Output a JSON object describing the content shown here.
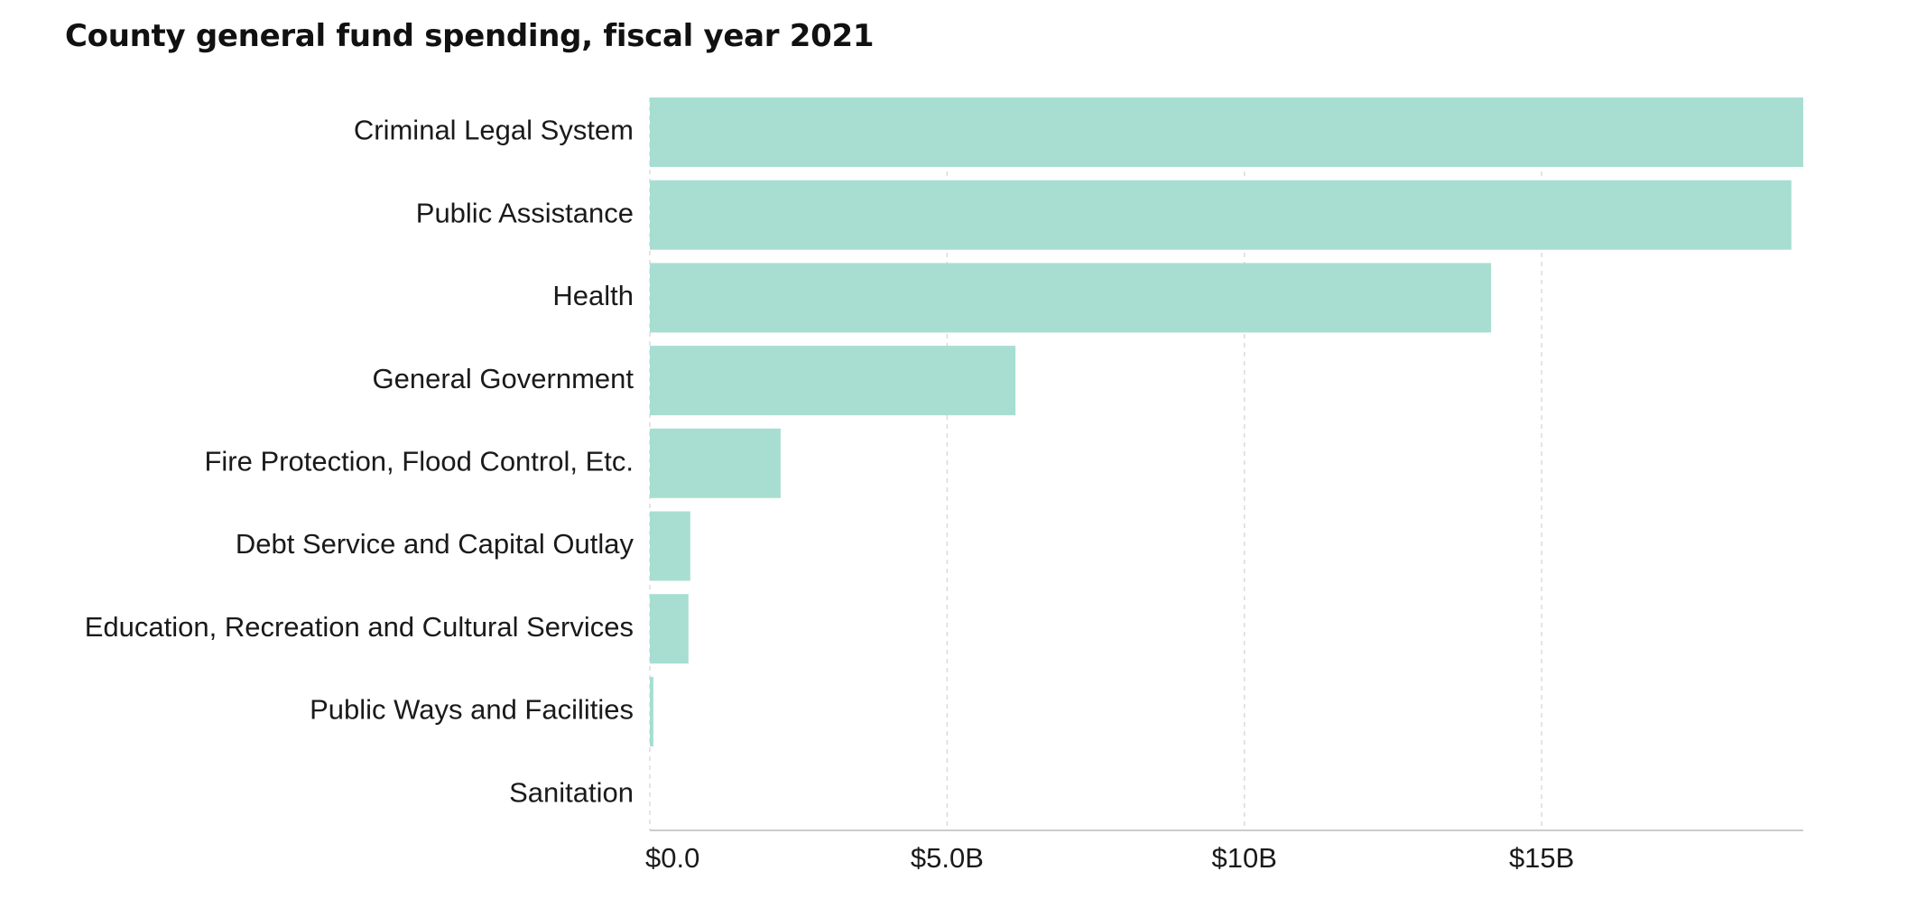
{
  "chart_data": {
    "type": "bar",
    "orientation": "horizontal",
    "title": "County general fund spending, fiscal year 2021",
    "xlabel": "",
    "ylabel": "",
    "categories": [
      "Criminal Legal System",
      "Public Assistance",
      "Health",
      "General Government",
      "Fire Protection, Flood Control, Etc.",
      "Debt Service and Capital Outlay",
      "Education, Recreation and Cultural Services",
      "Public Ways and Facilities",
      "Sanitation"
    ],
    "values": [
      19.4,
      19.2,
      14.15,
      6.15,
      2.2,
      0.68,
      0.65,
      0.06,
      0.0
    ],
    "unit": "billion USD",
    "xlim": [
      0,
      19.4
    ],
    "x_ticks": [
      0,
      5,
      10,
      15
    ],
    "x_tick_labels": [
      "$0.0",
      "$5.0B",
      "$10B",
      "$15B"
    ],
    "bar_color": "#a8ded1",
    "grid": "vertical dashed",
    "legend": "none"
  }
}
